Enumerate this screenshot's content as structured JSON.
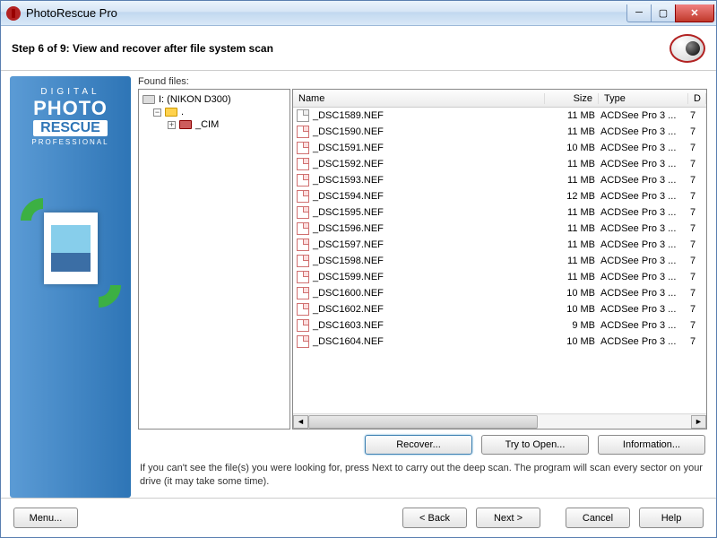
{
  "window": {
    "title": "PhotoRescue Pro"
  },
  "header": {
    "step_title": "Step 6 of 9: View and recover after file system scan"
  },
  "sidebar_brand": {
    "line1": "DIGITAL",
    "line2": "PHOTO",
    "line3": "RESCUE",
    "line4": "PROFESSIONAL"
  },
  "tree": {
    "label": "Found files:",
    "root": "I: (NIKON D300)",
    "dot_folder": ".",
    "cim_folder": "_CIM"
  },
  "columns": {
    "name": "Name",
    "size": "Size",
    "type": "Type",
    "d": "D"
  },
  "files": [
    {
      "name": "_DSC1589.NEF",
      "size": "11 MB",
      "type": "ACDSee Pro 3 ...",
      "d": "7"
    },
    {
      "name": "_DSC1590.NEF",
      "size": "11 MB",
      "type": "ACDSee Pro 3 ...",
      "d": "7"
    },
    {
      "name": "_DSC1591.NEF",
      "size": "10 MB",
      "type": "ACDSee Pro 3 ...",
      "d": "7"
    },
    {
      "name": "_DSC1592.NEF",
      "size": "11 MB",
      "type": "ACDSee Pro 3 ...",
      "d": "7"
    },
    {
      "name": "_DSC1593.NEF",
      "size": "11 MB",
      "type": "ACDSee Pro 3 ...",
      "d": "7"
    },
    {
      "name": "_DSC1594.NEF",
      "size": "12 MB",
      "type": "ACDSee Pro 3 ...",
      "d": "7"
    },
    {
      "name": "_DSC1595.NEF",
      "size": "11 MB",
      "type": "ACDSee Pro 3 ...",
      "d": "7"
    },
    {
      "name": "_DSC1596.NEF",
      "size": "11 MB",
      "type": "ACDSee Pro 3 ...",
      "d": "7"
    },
    {
      "name": "_DSC1597.NEF",
      "size": "11 MB",
      "type": "ACDSee Pro 3 ...",
      "d": "7"
    },
    {
      "name": "_DSC1598.NEF",
      "size": "11 MB",
      "type": "ACDSee Pro 3 ...",
      "d": "7"
    },
    {
      "name": "_DSC1599.NEF",
      "size": "11 MB",
      "type": "ACDSee Pro 3 ...",
      "d": "7"
    },
    {
      "name": "_DSC1600.NEF",
      "size": "10 MB",
      "type": "ACDSee Pro 3 ...",
      "d": "7"
    },
    {
      "name": "_DSC1602.NEF",
      "size": "10 MB",
      "type": "ACDSee Pro 3 ...",
      "d": "7"
    },
    {
      "name": "_DSC1603.NEF",
      "size": "9 MB",
      "type": "ACDSee Pro 3 ...",
      "d": "7"
    },
    {
      "name": "_DSC1604.NEF",
      "size": "10 MB",
      "type": "ACDSee Pro 3 ...",
      "d": "7"
    }
  ],
  "buttons": {
    "recover": "Recover...",
    "try_open": "Try to Open...",
    "info": "Information..."
  },
  "hint": "If you can't see the file(s) you were looking for, press Next to carry out the deep scan. The program will scan every sector on your drive (it may take some time).",
  "footer": {
    "menu": "Menu...",
    "back": "< Back",
    "next": "Next >",
    "cancel": "Cancel",
    "help": "Help"
  },
  "colors": {
    "accent": "#2e75b6",
    "danger": "#c0392b"
  }
}
